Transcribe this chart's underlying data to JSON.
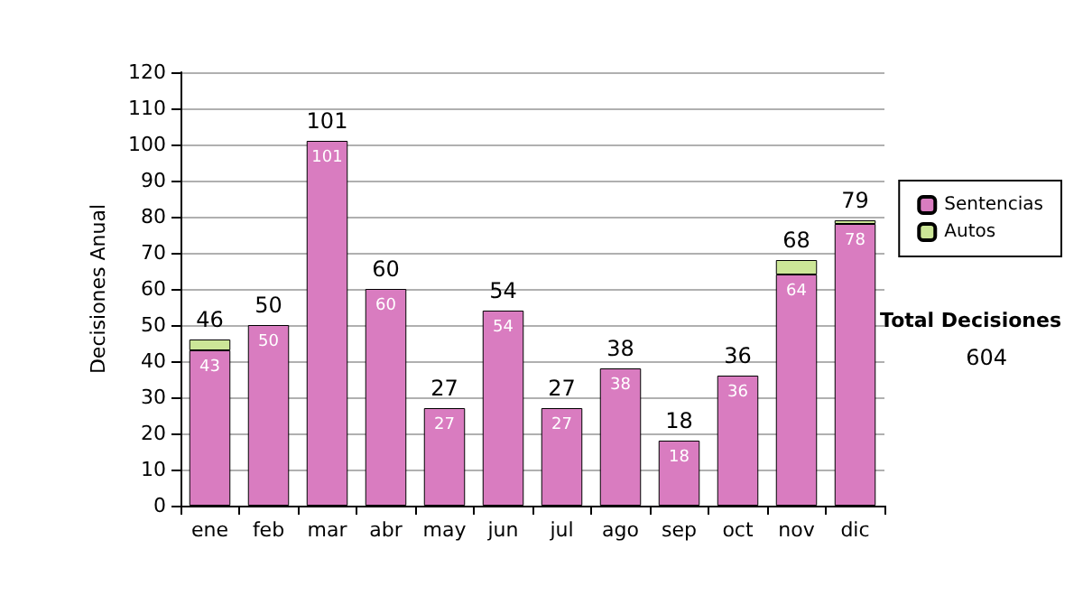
{
  "chart_data": {
    "type": "bar",
    "ylabel": "Decisiones Anual",
    "categories": [
      "ene",
      "feb",
      "mar",
      "abr",
      "may",
      "jun",
      "jul",
      "ago",
      "sep",
      "oct",
      "nov",
      "dic"
    ],
    "stacked": true,
    "series": [
      {
        "name": "Sentencias",
        "color": "#d97cc0",
        "values": [
          43,
          50,
          101,
          60,
          27,
          54,
          27,
          38,
          18,
          36,
          64,
          78
        ],
        "value_labels": [
          "43",
          "50",
          "101",
          "60",
          "27",
          "54",
          "27",
          "38",
          "18",
          "36",
          "64",
          "78"
        ]
      },
      {
        "name": "Autos",
        "color": "#cce697",
        "values": [
          3,
          0,
          0,
          0,
          0,
          0,
          0,
          0,
          0,
          0,
          4,
          1
        ]
      }
    ],
    "totals": [
      "46",
      "50",
      "101",
      "60",
      "27",
      "54",
      "27",
      "38",
      "18",
      "36",
      "68",
      "79"
    ],
    "ylim": [
      0,
      120
    ],
    "yticks": [
      0,
      10,
      20,
      30,
      40,
      50,
      60,
      70,
      80,
      90,
      100,
      110,
      120
    ],
    "grid": "y",
    "legend": "right",
    "annotations": [
      "Total Decisiones",
      "604"
    ]
  }
}
